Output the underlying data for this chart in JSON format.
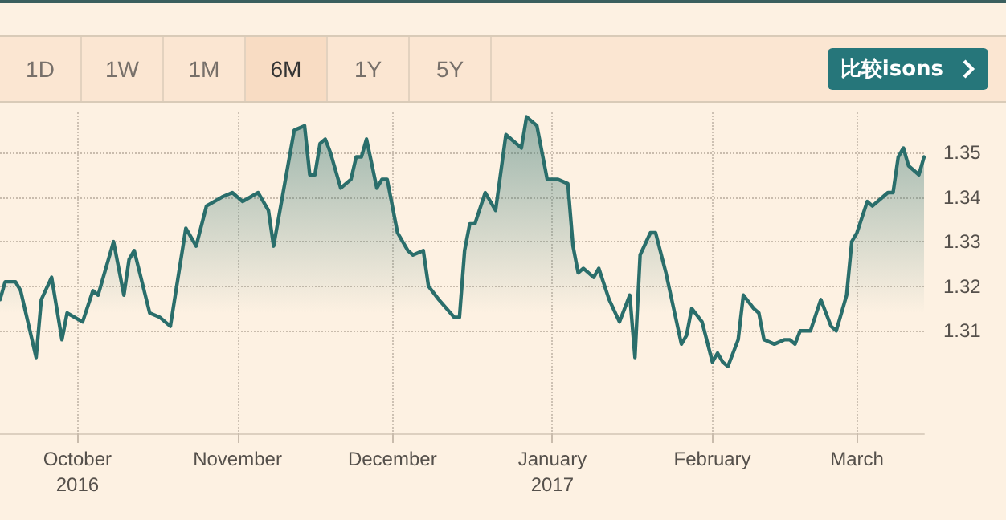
{
  "chart_data": {
    "type": "area",
    "annotations": [
      "1D",
      "1W",
      "1M",
      "6M",
      "1Y",
      "5Y",
      "比较isons"
    ],
    "x": [
      "2016-09-16",
      "2016-09-17",
      "2016-09-19",
      "2016-09-20",
      "2016-09-23",
      "2016-09-24",
      "2016-09-26",
      "2016-09-28",
      "2016-09-29",
      "2016-10-02",
      "2016-10-04",
      "2016-10-05",
      "2016-10-08",
      "2016-10-10",
      "2016-10-11",
      "2016-10-12",
      "2016-10-15",
      "2016-10-17",
      "2016-10-19",
      "2016-10-22",
      "2016-10-24",
      "2016-10-26",
      "2016-10-29",
      "2016-10-31",
      "2016-11-02",
      "2016-11-05",
      "2016-11-07",
      "2016-11-08",
      "2016-11-10",
      "2016-11-12",
      "2016-11-14",
      "2016-11-15",
      "2016-11-16",
      "2016-11-17",
      "2016-11-18",
      "2016-11-19",
      "2016-11-21",
      "2016-11-23",
      "2016-11-24",
      "2016-11-25",
      "2016-11-26",
      "2016-11-28",
      "2016-11-29",
      "2016-11-30",
      "2016-12-02",
      "2016-12-04",
      "2016-12-05",
      "2016-12-07",
      "2016-12-08",
      "2016-12-10",
      "2016-12-13",
      "2016-12-14",
      "2016-12-15",
      "2016-12-16",
      "2016-12-17",
      "2016-12-19",
      "2016-12-21",
      "2016-12-23",
      "2016-12-26",
      "2016-12-27",
      "2016-12-29",
      "2016-12-31",
      "2017-01-02",
      "2017-01-04",
      "2017-01-05",
      "2017-01-06",
      "2017-01-07",
      "2017-01-09",
      "2017-01-10",
      "2017-01-12",
      "2017-01-14",
      "2017-01-16",
      "2017-01-17",
      "2017-01-18",
      "2017-01-20",
      "2017-01-21",
      "2017-01-23",
      "2017-01-26",
      "2017-01-27",
      "2017-01-28",
      "2017-01-30",
      "2017-02-01",
      "2017-02-02",
      "2017-02-03",
      "2017-02-04",
      "2017-02-06",
      "2017-02-07",
      "2017-02-09",
      "2017-02-10",
      "2017-02-11",
      "2017-02-13",
      "2017-02-15",
      "2017-02-16",
      "2017-02-17",
      "2017-02-18",
      "2017-02-20",
      "2017-02-22",
      "2017-02-24",
      "2017-02-25",
      "2017-02-27",
      "2017-02-28",
      "2017-03-01",
      "2017-03-03",
      "2017-03-04",
      "2017-03-07",
      "2017-03-08",
      "2017-03-09",
      "2017-03-10",
      "2017-03-11",
      "2017-03-13",
      "2017-03-14"
    ],
    "series": [
      {
        "color": "#2a6e6b",
        "values": [
          1.317,
          1.321,
          1.321,
          1.319,
          1.304,
          1.317,
          1.322,
          1.308,
          1.314,
          1.312,
          1.319,
          1.318,
          1.33,
          1.318,
          1.326,
          1.328,
          1.314,
          1.313,
          1.311,
          1.333,
          1.329,
          1.338,
          1.34,
          1.341,
          1.339,
          1.341,
          1.337,
          1.329,
          1.342,
          1.355,
          1.356,
          1.345,
          1.345,
          1.352,
          1.353,
          1.35,
          1.342,
          1.344,
          1.349,
          1.349,
          1.353,
          1.342,
          1.344,
          1.344,
          1.332,
          1.328,
          1.327,
          1.328,
          1.32,
          1.317,
          1.313,
          1.313,
          1.328,
          1.334,
          1.334,
          1.341,
          1.337,
          1.354,
          1.351,
          1.358,
          1.356,
          1.344,
          1.344,
          1.343,
          1.329,
          1.323,
          1.324,
          1.322,
          1.324,
          1.317,
          1.312,
          1.318,
          1.304,
          1.327,
          1.332,
          1.332,
          1.323,
          1.307,
          1.309,
          1.315,
          1.312,
          1.303,
          1.305,
          1.303,
          1.302,
          1.308,
          1.318,
          1.315,
          1.314,
          1.308,
          1.307,
          1.308,
          1.308,
          1.307,
          1.31,
          1.31,
          1.317,
          1.311,
          1.31,
          1.318,
          1.33,
          1.332,
          1.339,
          1.338,
          1.341,
          1.341,
          1.349,
          1.351,
          1.347,
          1.345,
          1.349
        ]
      }
    ],
    "xlim": [
      "2016-09-16",
      "2017-03-14"
    ],
    "xticks": [
      {
        "value": "2016-10-01",
        "label": "October\n2016"
      },
      {
        "value": "2016-11-01",
        "label": "November"
      },
      {
        "value": "2016-12-01",
        "label": "December"
      },
      {
        "value": "2017-01-01",
        "label": "January\n2017"
      },
      {
        "value": "2017-02-01",
        "label": "February"
      },
      {
        "value": "2017-03-01",
        "label": "March"
      }
    ],
    "ylim": [
      1.287,
      1.359
    ],
    "yticks": [
      1.31,
      1.32,
      1.33,
      1.34,
      1.35
    ],
    "grid": true,
    "marker": "none",
    "line_style": "solid"
  }
}
